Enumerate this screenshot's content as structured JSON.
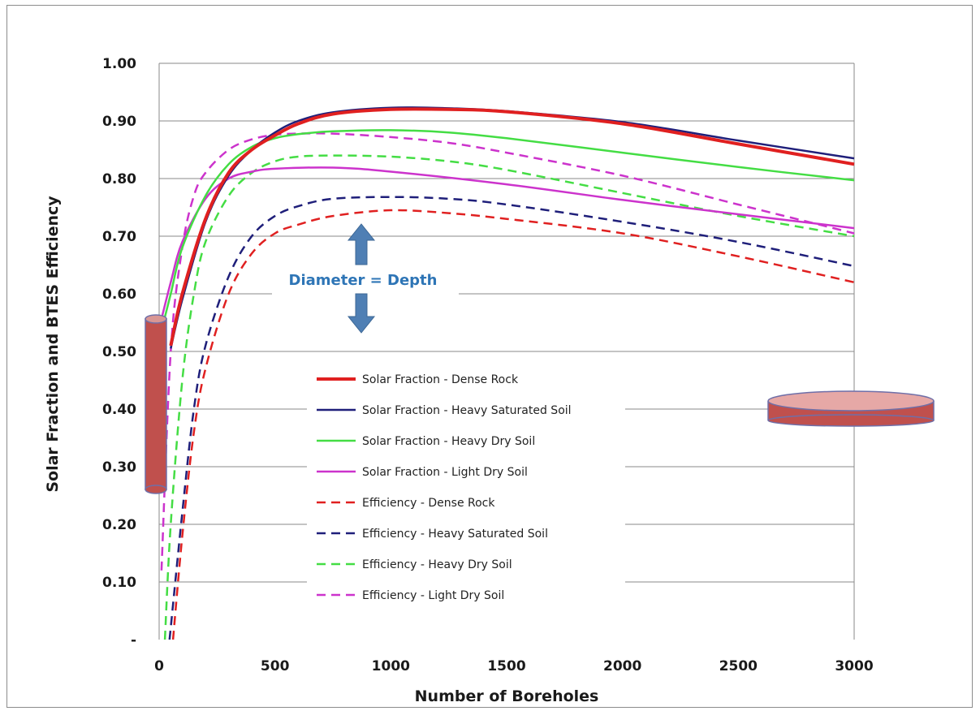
{
  "chart_data": {
    "type": "line",
    "title": "",
    "xlabel": "Number of Boreholes",
    "ylabel": "Solar Fraction and BTES Efficiency",
    "xlim": [
      0,
      3000
    ],
    "ylim": [
      0,
      1.0
    ],
    "x_ticks": [
      0,
      500,
      1000,
      1500,
      2000,
      2500,
      3000
    ],
    "x_tick_labels": [
      "0",
      "500",
      "1000",
      "1500",
      "2000",
      "2500",
      "3000"
    ],
    "y_ticks": [
      0,
      0.1,
      0.2,
      0.3,
      0.4,
      0.5,
      0.6,
      0.7,
      0.8,
      0.9,
      1.0
    ],
    "y_tick_labels": [
      "-",
      "0.10",
      "0.20",
      "0.30",
      "0.40",
      "0.50",
      "0.60",
      "0.70",
      "0.80",
      "0.90",
      "1.00"
    ],
    "grid": "horizontal",
    "legend_position": "center",
    "annotation": "Diameter = Depth",
    "series": [
      {
        "name": "Solar Fraction - Dense Rock",
        "color": "#e02020",
        "dash": false,
        "width": 4,
        "x": [
          50,
          100,
          200,
          300,
          400,
          500,
          600,
          750,
          1000,
          1250,
          1500,
          2000,
          2500,
          3000
        ],
        "y": [
          0.51,
          0.6,
          0.73,
          0.81,
          0.85,
          0.875,
          0.895,
          0.912,
          0.92,
          0.92,
          0.916,
          0.895,
          0.86,
          0.825
        ]
      },
      {
        "name": "Solar Fraction - Heavy Saturated Soil",
        "color": "#1f1f7a",
        "dash": false,
        "width": 2.5,
        "x": [
          50,
          100,
          200,
          300,
          400,
          500,
          600,
          750,
          1000,
          1250,
          1500,
          2000,
          2500,
          3000
        ],
        "y": [
          0.505,
          0.59,
          0.725,
          0.805,
          0.85,
          0.88,
          0.9,
          0.915,
          0.923,
          0.922,
          0.917,
          0.898,
          0.866,
          0.835
        ]
      },
      {
        "name": "Solar Fraction - Heavy Dry Soil",
        "color": "#44dd44",
        "dash": false,
        "width": 2.5,
        "x": [
          0,
          50,
          100,
          200,
          300,
          400,
          500,
          600,
          750,
          1000,
          1250,
          1500,
          2000,
          2500,
          3000
        ],
        "y": [
          0.52,
          0.6,
          0.68,
          0.77,
          0.825,
          0.855,
          0.87,
          0.877,
          0.882,
          0.884,
          0.88,
          0.87,
          0.845,
          0.82,
          0.797
        ]
      },
      {
        "name": "Solar Fraction - Light Dry Soil",
        "color": "#cc33cc",
        "dash": false,
        "width": 2.5,
        "x": [
          0,
          50,
          100,
          200,
          300,
          400,
          500,
          750,
          1000,
          1500,
          2000,
          2500,
          3000
        ],
        "y": [
          0.54,
          0.62,
          0.69,
          0.765,
          0.8,
          0.812,
          0.817,
          0.819,
          0.812,
          0.79,
          0.763,
          0.738,
          0.714
        ]
      },
      {
        "name": "Efficiency - Dense Rock",
        "color": "#e02020",
        "dash": true,
        "width": 2.5,
        "x": [
          60,
          100,
          150,
          200,
          300,
          400,
          500,
          600,
          750,
          1000,
          1250,
          1500,
          2000,
          2500,
          3000
        ],
        "y": [
          0.0,
          0.18,
          0.36,
          0.47,
          0.6,
          0.67,
          0.705,
          0.72,
          0.735,
          0.745,
          0.74,
          0.73,
          0.705,
          0.665,
          0.62
        ]
      },
      {
        "name": "Efficiency - Heavy Saturated Soil",
        "color": "#1f1f7a",
        "dash": true,
        "width": 2.5,
        "x": [
          45,
          100,
          150,
          200,
          300,
          400,
          500,
          600,
          750,
          1000,
          1250,
          1500,
          2000,
          2500,
          3000
        ],
        "y": [
          0.0,
          0.22,
          0.4,
          0.51,
          0.63,
          0.7,
          0.735,
          0.752,
          0.765,
          0.768,
          0.765,
          0.755,
          0.725,
          0.69,
          0.648
        ]
      },
      {
        "name": "Efficiency - Heavy Dry Soil",
        "color": "#44dd44",
        "dash": true,
        "width": 2.5,
        "x": [
          25,
          50,
          100,
          150,
          200,
          300,
          400,
          500,
          600,
          750,
          1000,
          1250,
          1500,
          2000,
          2500,
          3000
        ],
        "y": [
          0.0,
          0.2,
          0.45,
          0.6,
          0.69,
          0.77,
          0.81,
          0.83,
          0.838,
          0.84,
          0.838,
          0.83,
          0.815,
          0.775,
          0.735,
          0.7
        ]
      },
      {
        "name": "Efficiency - Light Dry Soil",
        "color": "#cc33cc",
        "dash": true,
        "width": 2.5,
        "x": [
          10,
          50,
          100,
          150,
          200,
          300,
          400,
          500,
          600,
          750,
          1000,
          1250,
          1500,
          2000,
          2500,
          3000
        ],
        "y": [
          0.12,
          0.5,
          0.68,
          0.77,
          0.81,
          0.85,
          0.868,
          0.876,
          0.878,
          0.878,
          0.872,
          0.862,
          0.845,
          0.805,
          0.755,
          0.705
        ]
      }
    ]
  }
}
